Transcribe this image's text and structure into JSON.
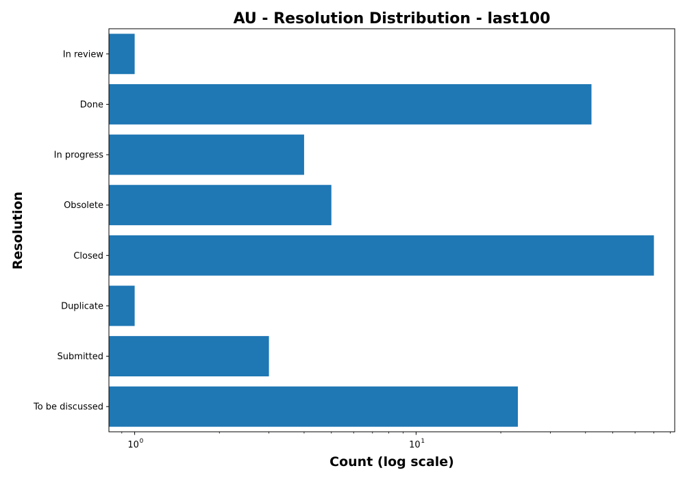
{
  "chart_data": {
    "type": "bar",
    "orientation": "horizontal",
    "title": "AU - Resolution Distribution - last100",
    "xlabel": "Count (log scale)",
    "ylabel": "Resolution",
    "x_scale": "log",
    "xlim": [
      0.81,
      83
    ],
    "x_major_ticks": [
      {
        "value": 1,
        "base": "10",
        "exp": "0"
      },
      {
        "value": 10,
        "base": "10",
        "exp": "1"
      }
    ],
    "x_minor_ticks": [
      0.9,
      2,
      3,
      4,
      5,
      6,
      7,
      8,
      9,
      20,
      30,
      40,
      50,
      60,
      70,
      80
    ],
    "categories": [
      "In review",
      "Done",
      "In progress",
      "Obsolete",
      "Closed",
      "Duplicate",
      "Submitted",
      "To be discussed"
    ],
    "values": [
      1,
      42,
      4,
      5,
      70,
      1,
      3,
      23
    ],
    "bar_color": "#1f77b4",
    "grid": false,
    "legend": "none"
  }
}
